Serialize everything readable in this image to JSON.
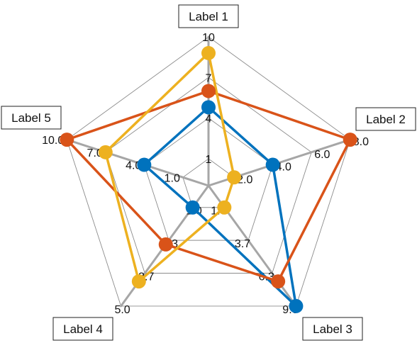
{
  "chart_data": {
    "type": "radar",
    "axes": [
      {
        "label": "Label 1",
        "ticks": [
          "1",
          "4",
          "7",
          "10"
        ]
      },
      {
        "label": "Label 2",
        "ticks": [
          "2.0",
          "4.0",
          "6.0",
          "8.0"
        ]
      },
      {
        "label": "Label 3",
        "ticks": [
          "1.0",
          "3.7",
          "6.3",
          "9.0"
        ]
      },
      {
        "label": "Label 4",
        "ticks": [
          "1.0",
          "2.3",
          "3.7",
          "5.0"
        ]
      },
      {
        "label": "Label 5",
        "ticks": [
          "1.0",
          "4.0",
          "7.0",
          "10.0"
        ]
      }
    ],
    "axis_ranges": [
      [
        1,
        10
      ],
      [
        2,
        8
      ],
      [
        1,
        9
      ],
      [
        1,
        5
      ],
      [
        1,
        10
      ]
    ],
    "series": [
      {
        "color": "#0072BD",
        "values": [
          4.8,
          4.0,
          9.0,
          1.0,
          4.0
        ]
      },
      {
        "color": "#D95319",
        "values": [
          6.0,
          8.0,
          7.0,
          2.5,
          10.0
        ]
      },
      {
        "color": "#EDB120",
        "values": [
          8.8,
          2.0,
          1.0,
          4.0,
          7.0
        ]
      }
    ],
    "grid": true
  }
}
